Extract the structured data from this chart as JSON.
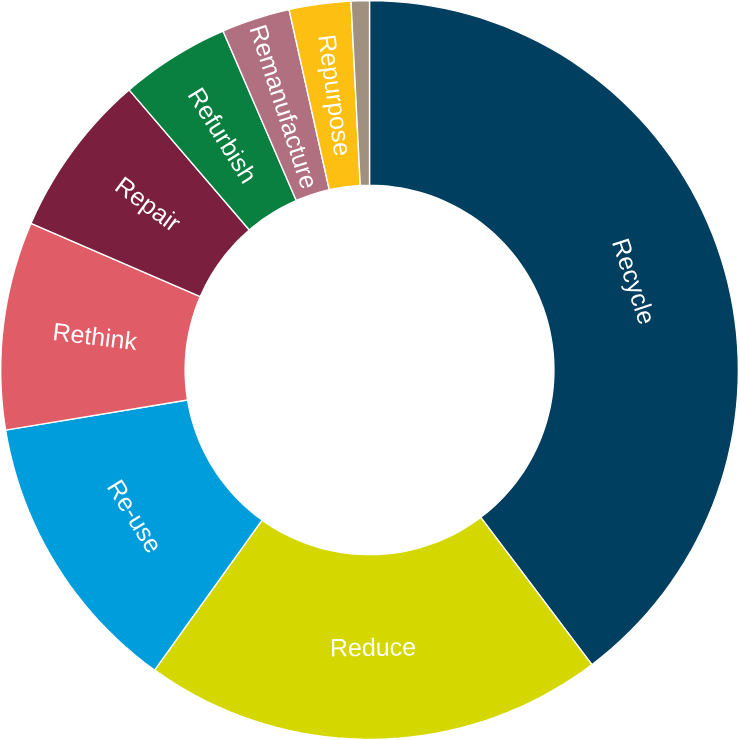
{
  "chart_data": {
    "type": "donut",
    "categories": [
      "Recycle",
      "Reduce",
      "Re-use",
      "Rethink",
      "Repair",
      "Refurbish",
      "Remanufacture",
      "Repurpose",
      null
    ],
    "values": [
      39.7,
      20.2,
      12.5,
      9.1,
      7.2,
      4.8,
      3.0,
      2.7,
      0.8
    ],
    "colors": [
      "#003f5f",
      "#d4d800",
      "#009ddc",
      "#e05c66",
      "#7a1f3d",
      "#0a8040",
      "#b07080",
      "#fdbf12",
      "#a09080"
    ]
  }
}
